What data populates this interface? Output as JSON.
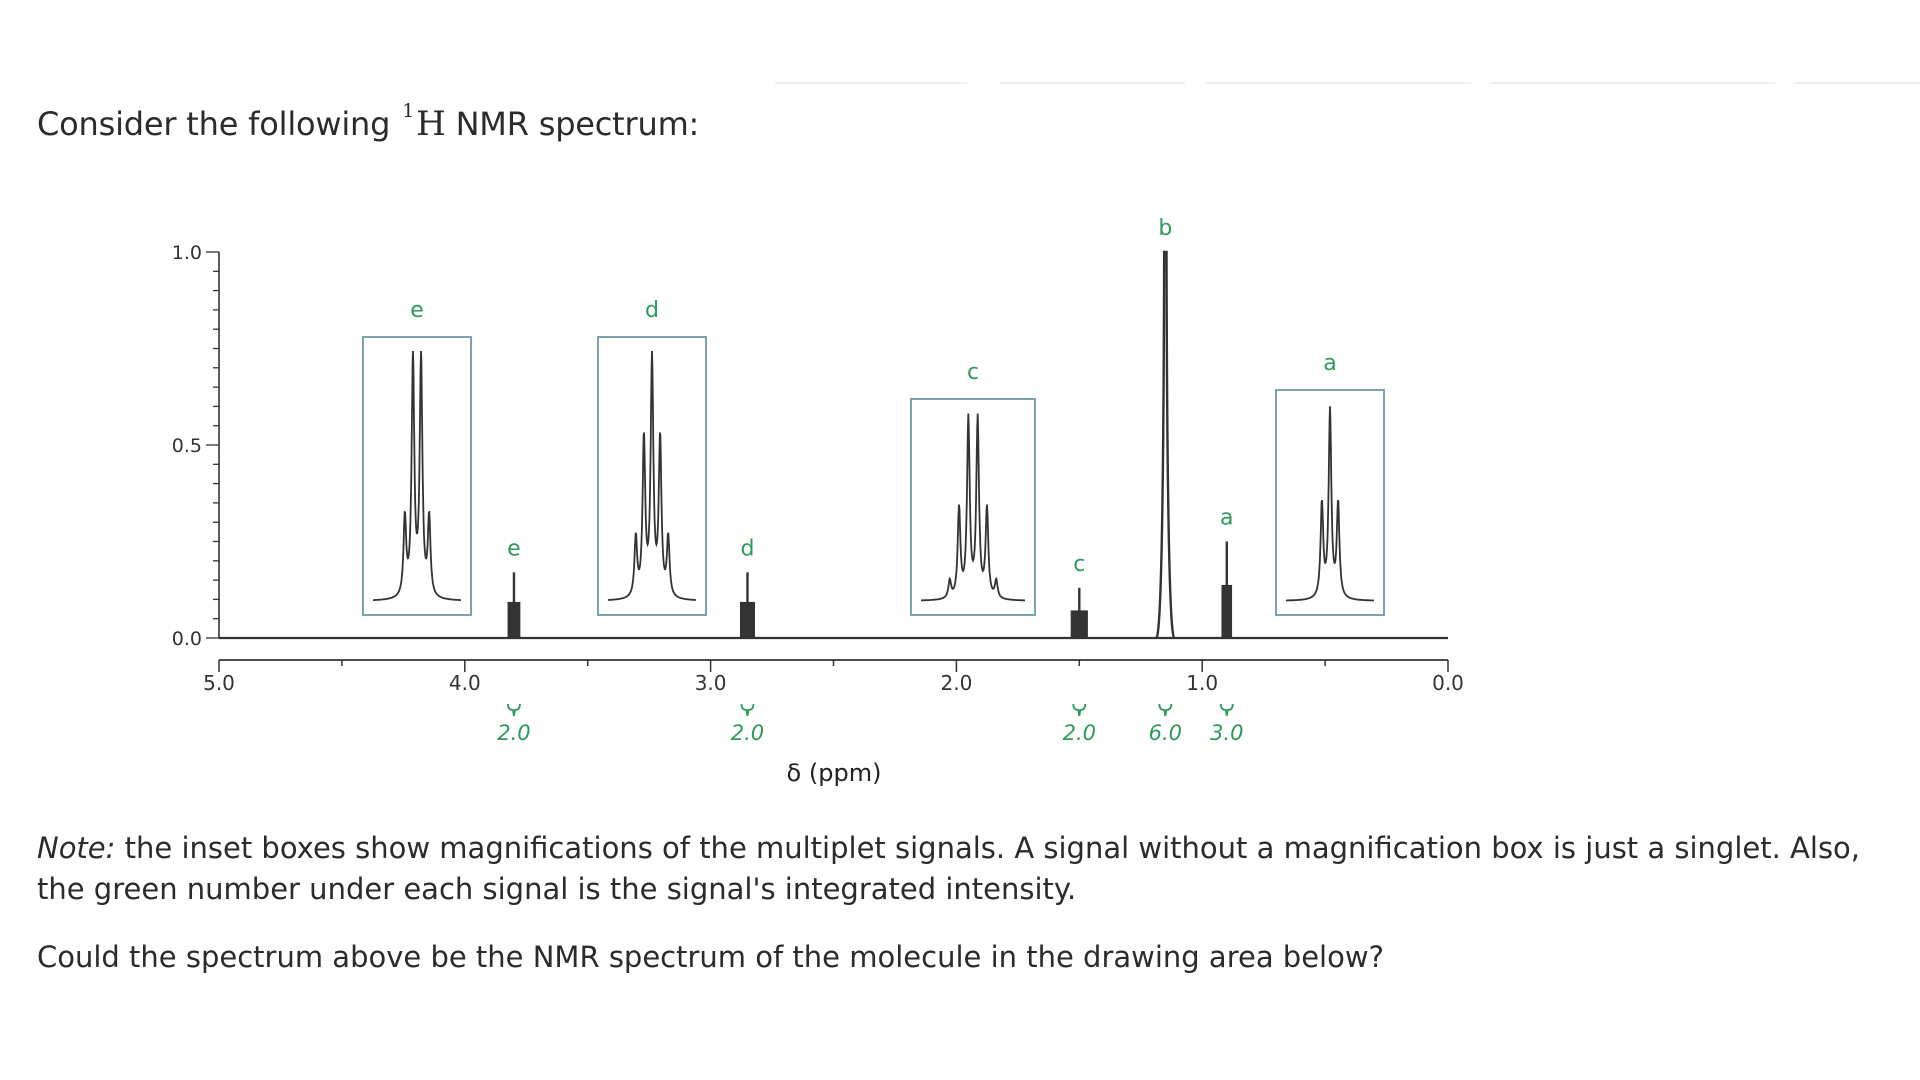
{
  "question": {
    "prefix": "Consider the following",
    "isotope_mass": "1",
    "element": "H",
    "suffix": "NMR spectrum:"
  },
  "note": {
    "label": "Note:",
    "text": "the inset boxes show magnifications of the multiplet signals. A signal without a magnification box is just a singlet. Also, the green number under each signal is the signal's integrated intensity."
  },
  "prompt": "Could the spectrum above be the NMR spectrum of the molecule in the drawing area below?",
  "colors": {
    "signal_label": "#2e9a5b",
    "inset_border": "#7fa3ad",
    "trace": "#333333"
  },
  "chart_data": {
    "type": "line",
    "xlabel": "δ (ppm)",
    "ylabel": "",
    "xlim": [
      5.0,
      0.0
    ],
    "ylim": [
      0.0,
      1.0
    ],
    "x_ticks": [
      "5.0",
      "4.0",
      "3.0",
      "2.0",
      "1.0",
      "0.0"
    ],
    "y_ticks": [
      "0.0",
      "0.5",
      "1.0"
    ],
    "peaks": [
      {
        "label": "e",
        "shift": 3.8,
        "height": 0.17,
        "integral": "2.0",
        "multiplicity": "quartet",
        "inset_label": "e"
      },
      {
        "label": "d",
        "shift": 2.85,
        "height": 0.17,
        "integral": "2.0",
        "multiplicity": "quintet",
        "inset_label": "d"
      },
      {
        "label": "c",
        "shift": 1.5,
        "height": 0.13,
        "integral": "2.0",
        "multiplicity": "sextet",
        "inset_label": "c"
      },
      {
        "label": "b",
        "shift": 1.15,
        "height": 1.0,
        "integral": "6.0",
        "multiplicity": "singlet",
        "inset_label": ""
      },
      {
        "label": "a",
        "shift": 0.9,
        "height": 0.25,
        "integral": "3.0",
        "multiplicity": "triplet",
        "inset_label": "a"
      }
    ]
  }
}
